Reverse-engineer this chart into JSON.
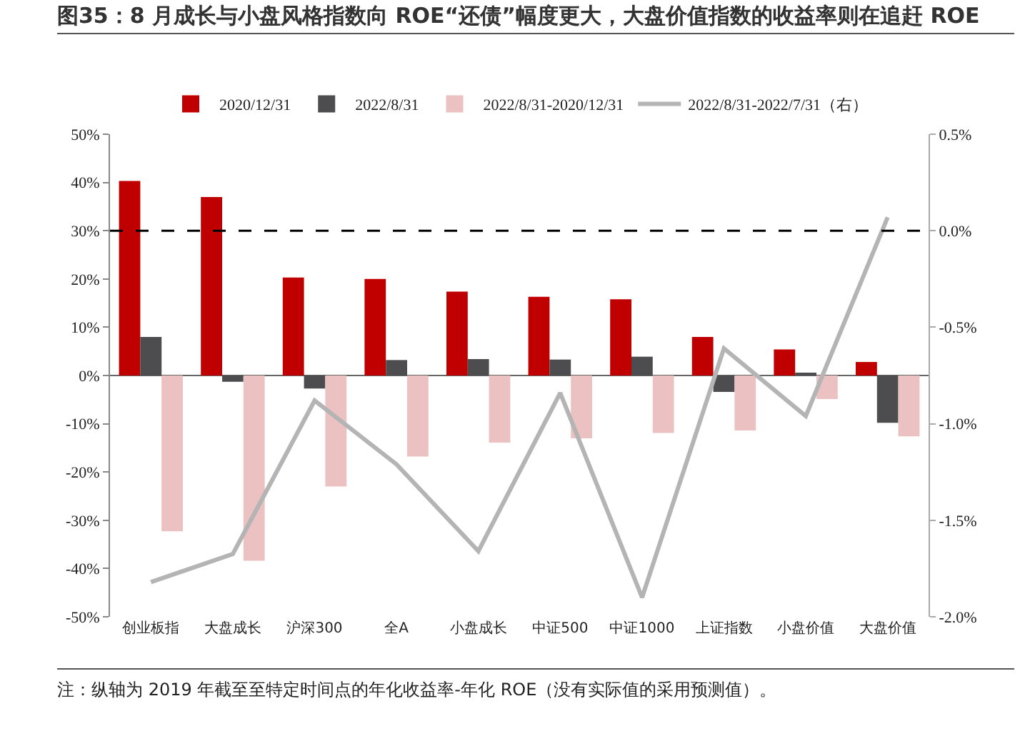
{
  "chart_data": {
    "type": "bar",
    "title": "图35：8 月成长与小盘风格指数向 ROE“还债”幅度更大，大盘价值指数的收益率则在追赶 ROE",
    "categories": [
      "创业板指",
      "大盘成长",
      "沪深300",
      "全A",
      "小盘成长",
      "中证500",
      "中证1000",
      "上证指数",
      "小盘价值",
      "大盘价值"
    ],
    "series": [
      {
        "name": "2020/12/31",
        "color": "#c00000",
        "values": [
          40.3,
          37,
          20.3,
          20,
          17.4,
          16.3,
          15.8,
          8,
          5.4,
          2.8
        ]
      },
      {
        "name": "2022/8/31",
        "color": "#4d4d4f",
        "values": [
          8,
          -1.3,
          -2.7,
          3.2,
          3.4,
          3.3,
          3.9,
          -3.4,
          0.5,
          -9.8
        ]
      },
      {
        "name": "2022/8/31-2020/12/31",
        "color": "#ebc1c1",
        "values": [
          -32.3,
          -38.4,
          -23,
          -16.8,
          -13.9,
          -13,
          -11.9,
          -11.4,
          -4.9,
          -12.6
        ]
      },
      {
        "name": "2022/8/31-2022/7/31（右）",
        "type": "line",
        "axis": "y2",
        "color": "#b4b4b4",
        "values": [
          -1.82,
          -1.675,
          -0.88,
          -1.21,
          -1.66,
          -0.84,
          -1.9,
          -0.61,
          -0.96,
          0.07
        ]
      }
    ],
    "ylim": [
      -50,
      50
    ],
    "yticks": [
      {
        "value": -50,
        "label": "-50%"
      },
      {
        "value": -40,
        "label": "-40%"
      },
      {
        "value": -30,
        "label": "-30%"
      },
      {
        "value": -20,
        "label": "-20%"
      },
      {
        "value": -10,
        "label": "-10%"
      },
      {
        "value": 0,
        "label": "0%"
      },
      {
        "value": 10,
        "label": "10%"
      },
      {
        "value": 20,
        "label": "20%"
      },
      {
        "value": 30,
        "label": "30%"
      },
      {
        "value": 40,
        "label": "40%"
      },
      {
        "value": 50,
        "label": "50%"
      }
    ],
    "y2lim": [
      -2,
      0.5
    ],
    "y2ticks": [
      {
        "value": -2,
        "label": "-2.0%"
      },
      {
        "value": -1.5,
        "label": "-1.5%"
      },
      {
        "value": -1,
        "label": "-1.0%"
      },
      {
        "value": -0.5,
        "label": "-0.5%"
      },
      {
        "value": 0,
        "label": "0.0%"
      },
      {
        "value": 0.5,
        "label": "0.5%"
      }
    ],
    "ref_lines": [
      {
        "axis": "y2",
        "value": 0,
        "color": "#000000",
        "line_style": "dashed"
      }
    ],
    "annotations": [
      "注：纵轴为 2019 年截至至特定时间点的年化收益率-年化 ROE（没有实际值的采用预测值）。"
    ],
    "legend": "top",
    "grid": false,
    "marker": "none"
  }
}
